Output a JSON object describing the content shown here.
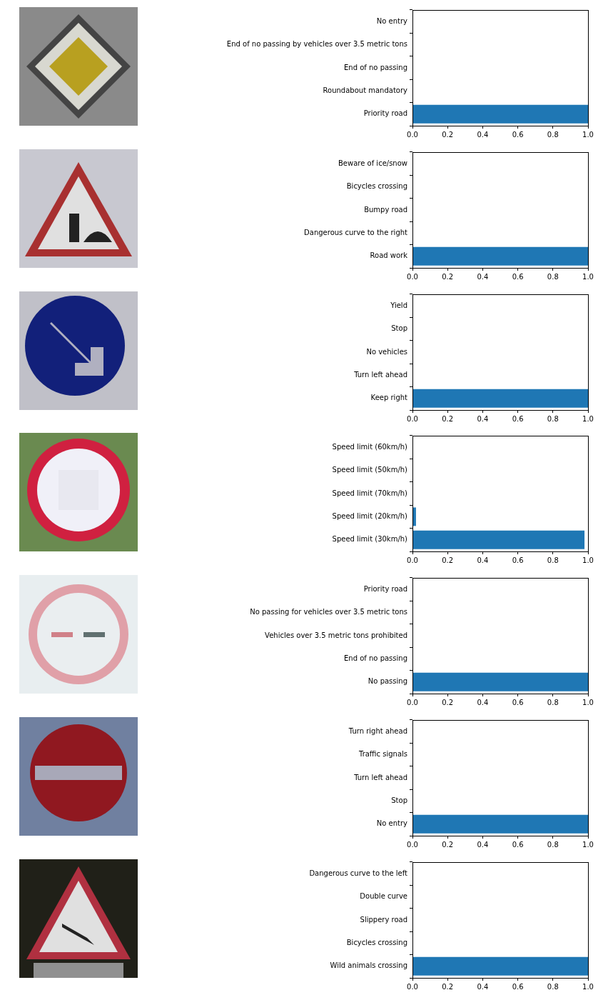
{
  "chart_data": [
    {
      "type": "bar",
      "orientation": "horizontal",
      "categories": [
        "No entry",
        "End of no passing by vehicles over 3.5 metric tons",
        "End of no passing",
        "Roundabout mandatory",
        "Priority road"
      ],
      "values": [
        0,
        0,
        0,
        0,
        1
      ],
      "color": "#1f77b4",
      "xlim": [
        0,
        1
      ],
      "xticks": [
        {
          "value": 0,
          "label": "0.0"
        },
        0.2,
        0.4,
        0.6,
        0.8,
        {
          "value": 1,
          "label": "1.0"
        }
      ],
      "grid": false
    },
    {
      "type": "bar",
      "orientation": "horizontal",
      "categories": [
        "Beware of ice/snow",
        "Bicycles crossing",
        "Bumpy road",
        "Dangerous curve to the right",
        "Road work"
      ],
      "values": [
        0,
        0,
        0,
        0,
        1
      ],
      "color": "#1f77b4",
      "xlim": [
        0,
        1
      ],
      "xticks": [
        {
          "value": 0,
          "label": "0.0"
        },
        0.2,
        0.4,
        0.6,
        0.8,
        {
          "value": 1,
          "label": "1.0"
        }
      ],
      "grid": false
    },
    {
      "type": "bar",
      "orientation": "horizontal",
      "categories": [
        "Yield",
        "Stop",
        "No vehicles",
        "Turn left ahead",
        "Keep right"
      ],
      "values": [
        0,
        0,
        0,
        0,
        1
      ],
      "color": "#1f77b4",
      "xlim": [
        0,
        1
      ],
      "xticks": [
        {
          "value": 0,
          "label": "0.0"
        },
        0.2,
        0.4,
        0.6,
        0.8,
        {
          "value": 1,
          "label": "1.0"
        }
      ],
      "grid": false
    },
    {
      "type": "bar",
      "orientation": "horizontal",
      "categories": [
        "Speed limit (60km/h)",
        "Speed limit (50km/h)",
        "Speed limit (70km/h)",
        "Speed limit (20km/h)",
        "Speed limit (30km/h)"
      ],
      "values": [
        0,
        0,
        0,
        0.02,
        0.98
      ],
      "color": "#1f77b4",
      "xlim": [
        0,
        1
      ],
      "xticks": [
        {
          "value": 0,
          "label": "0.0"
        },
        0.2,
        0.4,
        0.6,
        0.8,
        {
          "value": 1,
          "label": "1.0"
        }
      ],
      "grid": false
    },
    {
      "type": "bar",
      "orientation": "horizontal",
      "categories": [
        "Priority road",
        "No passing for vehicles over 3.5 metric tons",
        "Vehicles over 3.5 metric tons prohibited",
        "End of no passing",
        "No passing"
      ],
      "values": [
        0,
        0,
        0,
        0,
        1
      ],
      "color": "#1f77b4",
      "xlim": [
        0,
        1
      ],
      "xticks": [
        {
          "value": 0,
          "label": "0.0"
        },
        0.2,
        0.4,
        0.6,
        0.8,
        {
          "value": 1,
          "label": "1.0"
        }
      ],
      "grid": false
    },
    {
      "type": "bar",
      "orientation": "horizontal",
      "categories": [
        "Turn right ahead",
        "Traffic signals",
        "Turn left ahead",
        "Stop",
        "No entry"
      ],
      "values": [
        0,
        0,
        0,
        0,
        1
      ],
      "color": "#1f77b4",
      "xlim": [
        0,
        1
      ],
      "xticks": [
        {
          "value": 0,
          "label": "0.0"
        },
        0.2,
        0.4,
        0.6,
        0.8,
        {
          "value": 1,
          "label": "1.0"
        }
      ],
      "grid": false
    },
    {
      "type": "bar",
      "orientation": "horizontal",
      "categories": [
        "Dangerous curve to the left",
        "Double curve",
        "Slippery road",
        "Bicycles crossing",
        "Wild animals crossing"
      ],
      "values": [
        0,
        0,
        0,
        0,
        1
      ],
      "color": "#1f77b4",
      "xlim": [
        0,
        1
      ],
      "xticks": [
        {
          "value": 0,
          "label": "0.0"
        },
        0.2,
        0.4,
        0.6,
        0.8,
        {
          "value": 1,
          "label": "1.0"
        }
      ],
      "grid": false
    }
  ]
}
